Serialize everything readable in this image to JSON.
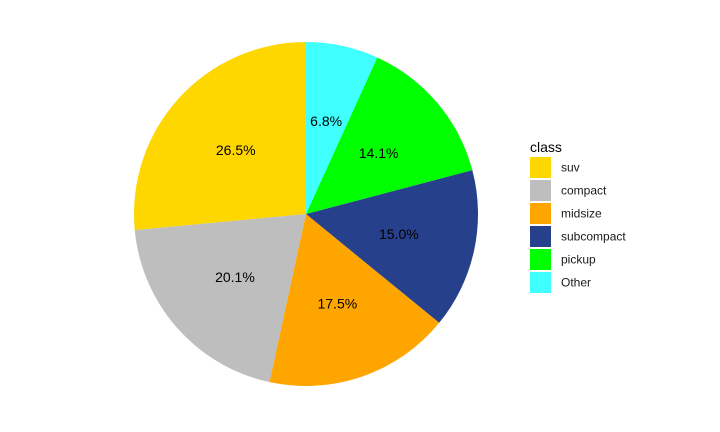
{
  "chart_data": {
    "type": "pie",
    "legend_title": "class",
    "legend_position": "right",
    "start_angle_deg": 0,
    "direction": "counterclockwise",
    "slices": [
      {
        "name": "suv",
        "value": 26.5,
        "label": "26.5%",
        "color": "#FFD700"
      },
      {
        "name": "compact",
        "value": 20.1,
        "label": "20.1%",
        "color": "#BEBEBE"
      },
      {
        "name": "midsize",
        "value": 17.5,
        "label": "17.5%",
        "color": "#FFA500"
      },
      {
        "name": "subcompact",
        "value": 15.0,
        "label": "15.0%",
        "color": "#27408B"
      },
      {
        "name": "pickup",
        "value": 14.1,
        "label": "14.1%",
        "color": "#00FF00"
      },
      {
        "name": "Other",
        "value": 6.8,
        "label": "6.8%",
        "color": "#40FFFF"
      }
    ]
  }
}
